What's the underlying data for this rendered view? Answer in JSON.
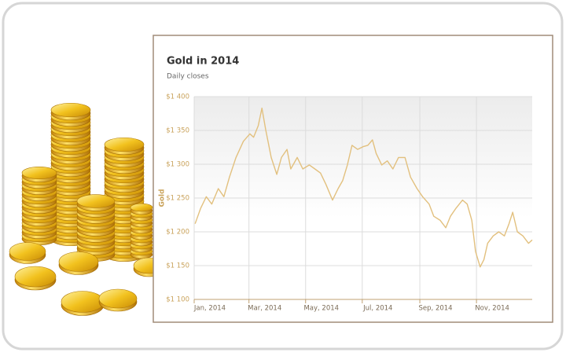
{
  "chart_data": {
    "type": "line",
    "title": "Gold in 2014",
    "subtitle": "Daily closes",
    "ylabel": "Gold",
    "color": "#e2c07e",
    "grid": true,
    "x": [
      "2014-01-02",
      "2014-01-08",
      "2014-01-14",
      "2014-01-20",
      "2014-01-27",
      "2014-02-02",
      "2014-02-08",
      "2014-02-15",
      "2014-02-23",
      "2014-03-02",
      "2014-03-06",
      "2014-03-11",
      "2014-03-15",
      "2014-03-19",
      "2014-03-25",
      "2014-03-31",
      "2014-04-05",
      "2014-04-11",
      "2014-04-15",
      "2014-04-22",
      "2014-04-28",
      "2014-05-05",
      "2014-05-11",
      "2014-05-17",
      "2014-05-23",
      "2014-05-30",
      "2014-06-05",
      "2014-06-10",
      "2014-06-15",
      "2014-06-20",
      "2014-06-26",
      "2014-07-02",
      "2014-07-07",
      "2014-07-12",
      "2014-07-16",
      "2014-07-22",
      "2014-07-28",
      "2014-08-03",
      "2014-08-09",
      "2014-08-16",
      "2014-08-22",
      "2014-08-29",
      "2014-09-04",
      "2014-09-11",
      "2014-09-16",
      "2014-09-23",
      "2014-09-29",
      "2014-10-04",
      "2014-10-10",
      "2014-10-17",
      "2014-10-22",
      "2014-10-27",
      "2014-10-31",
      "2014-11-05",
      "2014-11-09",
      "2014-11-13",
      "2014-11-19",
      "2014-11-25",
      "2014-12-01",
      "2014-12-06",
      "2014-12-10",
      "2014-12-15",
      "2014-12-21",
      "2014-12-27",
      "2014-12-31"
    ],
    "values": [
      1212,
      1235,
      1252,
      1241,
      1264,
      1252,
      1281,
      1310,
      1334,
      1345,
      1340,
      1357,
      1383,
      1351,
      1310,
      1285,
      1310,
      1322,
      1293,
      1310,
      1293,
      1299,
      1293,
      1287,
      1270,
      1247,
      1264,
      1276,
      1299,
      1328,
      1322,
      1326,
      1328,
      1336,
      1316,
      1299,
      1305,
      1293,
      1310,
      1310,
      1281,
      1264,
      1252,
      1241,
      1223,
      1217,
      1206,
      1223,
      1235,
      1247,
      1241,
      1217,
      1171,
      1148,
      1159,
      1183,
      1194,
      1200,
      1194,
      1212,
      1229,
      1200,
      1194,
      1183,
      1188
    ],
    "xlim": [
      "2014-01-01",
      "2014-12-31"
    ],
    "xticks": [
      {
        "value": "2014-01-01",
        "label": "Jan, 2014"
      },
      {
        "value": "2014-03-01",
        "label": "Mar, 2014"
      },
      {
        "value": "2014-05-01",
        "label": "May, 2014"
      },
      {
        "value": "2014-07-01",
        "label": "Jul, 2014"
      },
      {
        "value": "2014-09-01",
        "label": "Sep, 2014"
      },
      {
        "value": "2014-11-01",
        "label": "Nov, 2014"
      }
    ],
    "ylim": [
      1100,
      1400
    ],
    "yticks": [
      {
        "value": 1100,
        "label": "$1 100"
      },
      {
        "value": 1150,
        "label": "$1 150"
      },
      {
        "value": 1200,
        "label": "$1 200"
      },
      {
        "value": 1250,
        "label": "$1 250"
      },
      {
        "value": 1300,
        "label": "$1 300"
      },
      {
        "value": 1350,
        "label": "$1 350"
      },
      {
        "value": 1400,
        "label": "$1 400"
      }
    ]
  }
}
